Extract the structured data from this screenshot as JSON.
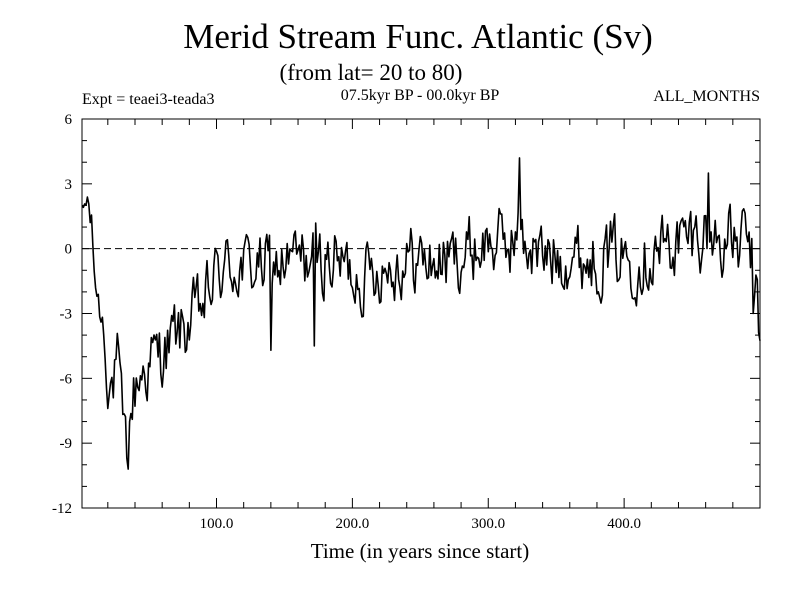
{
  "chart_data": {
    "type": "line",
    "title": "Merid Stream Func. Atlantic (Sv)",
    "subtitle": "(from lat= 20 to 80)",
    "experiment_label": "Expt = teaei3-teada3",
    "period_label": "07.5kyr BP - 00.0kyr BP",
    "months_label": "ALL_MONTHS",
    "xlabel": "Time (in years since start)",
    "ylabel": "",
    "xlim": [
      1,
      500
    ],
    "ylim": [
      -12,
      6
    ],
    "x_ticks": [
      100,
      200,
      300,
      400
    ],
    "x_tick_labels": [
      "100.0",
      "200.0",
      "300.0",
      "400.0"
    ],
    "y_ticks": [
      -12,
      -9,
      -6,
      -3,
      0,
      3,
      6
    ],
    "y_tick_labels": [
      "-12",
      "-9",
      "-6",
      "-3",
      "0",
      "3",
      "6"
    ],
    "reference_line": 0,
    "line_color": "#000000",
    "series_envelope": [
      {
        "x": 1,
        "y": 1.5
      },
      {
        "x": 5,
        "y": 2.3
      },
      {
        "x": 8,
        "y": 1.0
      },
      {
        "x": 10,
        "y": -1.0
      },
      {
        "x": 13,
        "y": -2.5
      },
      {
        "x": 16,
        "y": -3.2
      },
      {
        "x": 18,
        "y": -4.5
      },
      {
        "x": 20,
        "y": -6.2
      },
      {
        "x": 24,
        "y": -6.3
      },
      {
        "x": 27,
        "y": -5.0
      },
      {
        "x": 30,
        "y": -7.5
      },
      {
        "x": 32,
        "y": -8.5
      },
      {
        "x": 34,
        "y": -9.5
      },
      {
        "x": 37,
        "y": -7.5
      },
      {
        "x": 40,
        "y": -6.5
      },
      {
        "x": 44,
        "y": -5.8
      },
      {
        "x": 48,
        "y": -5.5
      },
      {
        "x": 52,
        "y": -5.2
      },
      {
        "x": 56,
        "y": -5.0
      },
      {
        "x": 60,
        "y": -4.8
      },
      {
        "x": 65,
        "y": -4.5
      },
      {
        "x": 70,
        "y": -4.0
      },
      {
        "x": 75,
        "y": -3.8
      },
      {
        "x": 80,
        "y": -3.5
      },
      {
        "x": 85,
        "y": -3.0
      },
      {
        "x": 90,
        "y": -2.7
      },
      {
        "x": 95,
        "y": -2.0
      },
      {
        "x": 100,
        "y": -1.2
      },
      {
        "x": 110,
        "y": -0.8
      },
      {
        "x": 120,
        "y": -0.9
      },
      {
        "x": 130,
        "y": -0.8
      },
      {
        "x": 140,
        "y": -0.8
      },
      {
        "x": 150,
        "y": -0.7
      },
      {
        "x": 160,
        "y": -0.5
      },
      {
        "x": 170,
        "y": -0.5
      },
      {
        "x": 180,
        "y": -0.5
      },
      {
        "x": 190,
        "y": -0.6
      },
      {
        "x": 200,
        "y": -1.1
      },
      {
        "x": 210,
        "y": -1.2
      },
      {
        "x": 220,
        "y": -0.8
      },
      {
        "x": 230,
        "y": -0.8
      },
      {
        "x": 240,
        "y": -0.5
      },
      {
        "x": 250,
        "y": -0.5
      },
      {
        "x": 260,
        "y": -0.7
      },
      {
        "x": 270,
        "y": -0.5
      },
      {
        "x": 280,
        "y": -0.3
      },
      {
        "x": 290,
        "y": 0.0
      },
      {
        "x": 300,
        "y": 0.3
      },
      {
        "x": 310,
        "y": 0.2
      },
      {
        "x": 320,
        "y": 0.5
      },
      {
        "x": 330,
        "y": 0.2
      },
      {
        "x": 340,
        "y": -0.5
      },
      {
        "x": 350,
        "y": -0.3
      },
      {
        "x": 360,
        "y": -0.2
      },
      {
        "x": 370,
        "y": -0.5
      },
      {
        "x": 380,
        "y": -0.4
      },
      {
        "x": 390,
        "y": -0.2
      },
      {
        "x": 400,
        "y": -0.3
      },
      {
        "x": 410,
        "y": -0.5
      },
      {
        "x": 420,
        "y": -0.2
      },
      {
        "x": 430,
        "y": 0.1
      },
      {
        "x": 440,
        "y": 0.3
      },
      {
        "x": 450,
        "y": 0.5
      },
      {
        "x": 460,
        "y": 0.8
      },
      {
        "x": 470,
        "y": 0.4
      },
      {
        "x": 480,
        "y": 0.3
      },
      {
        "x": 485,
        "y": 0.0
      },
      {
        "x": 490,
        "y": 0.5
      },
      {
        "x": 495,
        "y": -0.8
      },
      {
        "x": 500,
        "y": -4.5
      }
    ],
    "noise_amplitude": [
      {
        "x": 1,
        "amp": 0.6
      },
      {
        "x": 18,
        "amp": 1.0
      },
      {
        "x": 40,
        "amp": 1.6
      },
      {
        "x": 90,
        "amp": 1.5
      },
      {
        "x": 500,
        "amp": 1.55
      }
    ],
    "anchor_points": [
      {
        "x": 35,
        "y": -10.2
      },
      {
        "x": 140,
        "y": -4.7
      },
      {
        "x": 172,
        "y": -4.5
      },
      {
        "x": 323,
        "y": 4.2
      },
      {
        "x": 462,
        "y": 3.5
      },
      {
        "x": 495,
        "y": -3.0
      }
    ]
  }
}
